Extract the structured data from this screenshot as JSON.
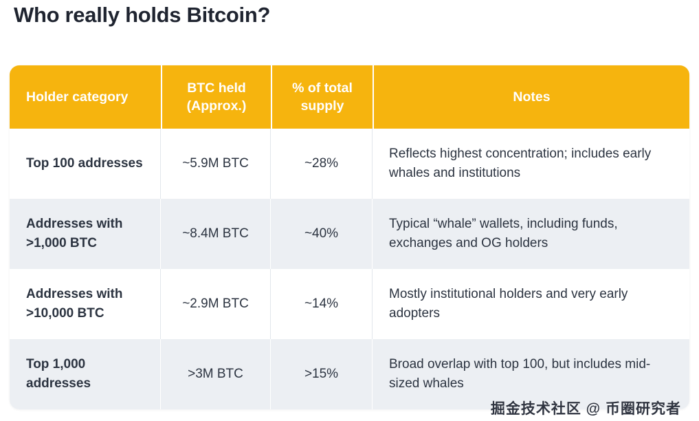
{
  "colors": {
    "header_bg": "#F6B40E",
    "header_text": "#FFFFFF",
    "row_alt_bg": "#ECEFF3",
    "body_text": "#2B3340",
    "title_text": "#1F2430"
  },
  "watermark": "掘金技术社区 @ 币圈研究者",
  "chart_data": {
    "type": "table",
    "title": "Who really holds Bitcoin?",
    "columns": [
      "Holder category",
      "BTC held (Approx.)",
      "% of total supply",
      "Notes"
    ],
    "rows": [
      [
        "Top 100 addresses",
        "~5.9M BTC",
        "~28%",
        "Reflects highest concentration; includes early whales and institutions"
      ],
      [
        "Addresses with >1,000 BTC",
        "~8.4M BTC",
        "~40%",
        "Typical “whale” wallets, including funds, exchanges and OG holders"
      ],
      [
        "Addresses with >10,000 BTC",
        "~2.9M BTC",
        "~14%",
        "Mostly institutional holders and very early adopters"
      ],
      [
        "Top 1,000 addresses",
        ">3M BTC",
        ">15%",
        "Broad overlap with top 100, but includes mid-sized whales"
      ]
    ],
    "layout_hints": {
      "header_style": "amber band, white bold text, rounded corners",
      "row_striping": "white / light-gray alternating",
      "first_column": "bold"
    }
  }
}
